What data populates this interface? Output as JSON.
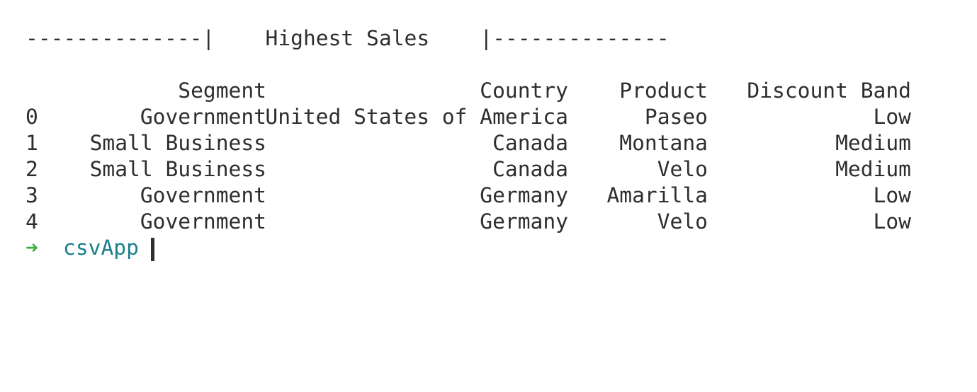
{
  "banner": "--------------|    Highest Sales    |--------------",
  "table": {
    "headers": {
      "segment": "Segment",
      "country": "Country",
      "product": "Product",
      "discount_band": "Discount Band"
    },
    "rows": [
      {
        "index": "0",
        "segment": "Government",
        "country": "United States of America",
        "product": "Paseo",
        "discount_band": "Low"
      },
      {
        "index": "1",
        "segment": "Small Business",
        "country": "Canada",
        "product": "Montana",
        "discount_band": "Medium"
      },
      {
        "index": "2",
        "segment": "Small Business",
        "country": "Canada",
        "product": "Velo",
        "discount_band": "Medium"
      },
      {
        "index": "3",
        "segment": "Government",
        "country": "Germany",
        "product": "Amarilla",
        "discount_band": "Low"
      },
      {
        "index": "4",
        "segment": "Government",
        "country": "Germany",
        "product": "Velo",
        "discount_band": "Low"
      }
    ]
  },
  "prompt": {
    "arrow": "➜",
    "directory": "csvApp"
  },
  "colors": {
    "text": "#2e2e2e",
    "prompt_arrow": "#3cb043",
    "prompt_dir": "#1a7f8a",
    "background": "#ffffff"
  }
}
